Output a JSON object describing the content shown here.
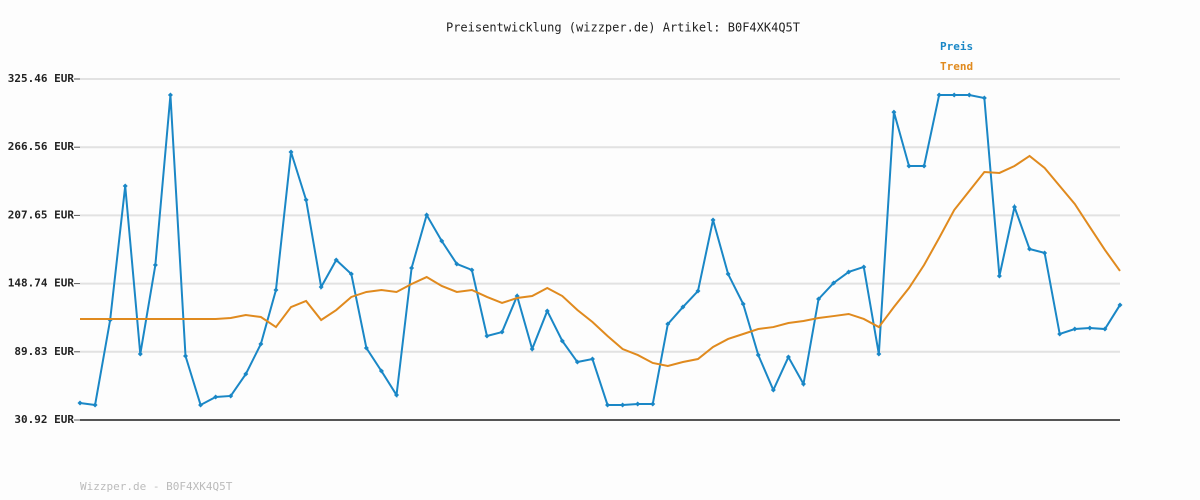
{
  "chart_data": {
    "type": "line",
    "title": "Preisentwicklung (wizzper.de) Artikel: B0F4XK4Q5T",
    "footer": "Wizzper.de - B0F4XK4Q5T",
    "ylim": [
      30.92,
      325.46
    ],
    "yticks": [
      {
        "value": 30.92,
        "label": "30.92 EUR"
      },
      {
        "value": 89.83,
        "label": "89.83 EUR"
      },
      {
        "value": 148.74,
        "label": "148.74 EUR"
      },
      {
        "value": 207.65,
        "label": "207.65 EUR"
      },
      {
        "value": 266.56,
        "label": "266.56 EUR"
      },
      {
        "value": 325.46,
        "label": "325.46 EUR"
      }
    ],
    "grid": true,
    "legend": "top-right",
    "series": [
      {
        "name": "Preis",
        "color": "#1a87c6",
        "markers": true,
        "values": [
          45.6,
          43.9,
          117.3,
          233.0,
          87.9,
          164.8,
          311.6,
          86.2,
          43.9,
          50.8,
          51.7,
          70.6,
          96.6,
          143.2,
          262.4,
          221.0,
          145.8,
          169.1,
          157.0,
          93.1,
          73.2,
          52.5,
          162.2,
          208.0,
          185.5,
          165.7,
          160.5,
          103.5,
          106.9,
          138.0,
          92.2,
          125.1,
          99.2,
          81.0,
          83.6,
          43.9,
          43.9,
          44.7,
          44.7,
          113.8,
          128.5,
          142.3,
          203.7,
          157.0,
          131.1,
          87.1,
          56.8,
          85.3,
          62.0,
          135.4,
          149.3,
          158.8,
          163.1,
          87.9,
          296.9,
          250.3,
          250.3,
          311.6,
          311.6,
          311.6,
          309.0,
          155.3,
          214.9,
          178.6,
          175.2,
          105.2,
          109.5,
          110.4,
          109.5,
          130.3
        ]
      },
      {
        "name": "Trend",
        "color": "#e08a1e",
        "markers": false,
        "values": [
          118.2,
          118.2,
          118.2,
          118.2,
          118.2,
          118.2,
          118.2,
          118.2,
          118.2,
          118.2,
          119.0,
          121.6,
          119.9,
          111.2,
          128.5,
          133.7,
          117.3,
          125.9,
          137.2,
          141.5,
          143.2,
          141.5,
          148.4,
          154.4,
          146.7,
          141.5,
          143.2,
          137.2,
          132.0,
          136.3,
          138.0,
          144.9,
          138.0,
          125.9,
          115.6,
          103.5,
          92.2,
          87.1,
          80.2,
          77.6,
          81.0,
          83.6,
          94.0,
          100.9,
          105.2,
          109.5,
          111.2,
          114.7,
          116.4,
          119.0,
          120.7,
          122.5,
          118.2,
          111.2,
          128.5,
          144.9,
          164.8,
          188.1,
          212.3,
          228.7,
          245.1,
          244.3,
          250.3,
          259.0,
          248.6,
          233.0,
          217.5,
          197.6,
          177.8,
          159.7
        ]
      }
    ]
  }
}
